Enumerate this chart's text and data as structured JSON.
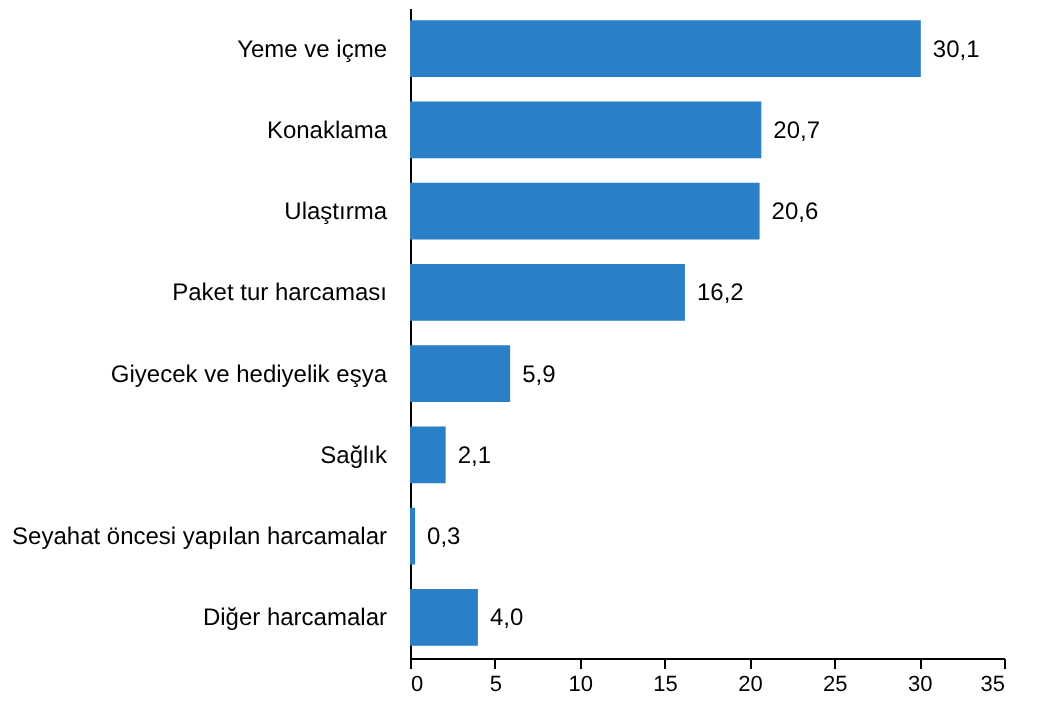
{
  "chart_data": {
    "type": "bar",
    "orientation": "horizontal",
    "categories": [
      "Yeme ve içme",
      "Konaklama",
      "Ulaştırma",
      "Paket tur harcaması",
      "Giyecek ve hediyelik eşya",
      "Sağlık",
      "Seyahat öncesi yapılan harcamalar",
      "Diğer harcamalar"
    ],
    "values": [
      30.1,
      20.7,
      20.6,
      16.2,
      5.9,
      2.1,
      0.3,
      4.0
    ],
    "value_labels": [
      "30,1",
      "20,7",
      "20,6",
      "16,2",
      "5,9",
      "2,1",
      "0,3",
      "4,0"
    ],
    "color": "#2b7fc7",
    "xlim": [
      0,
      35
    ],
    "xticks": [
      0,
      5,
      10,
      15,
      20,
      25,
      30,
      35
    ],
    "grid": false
  }
}
